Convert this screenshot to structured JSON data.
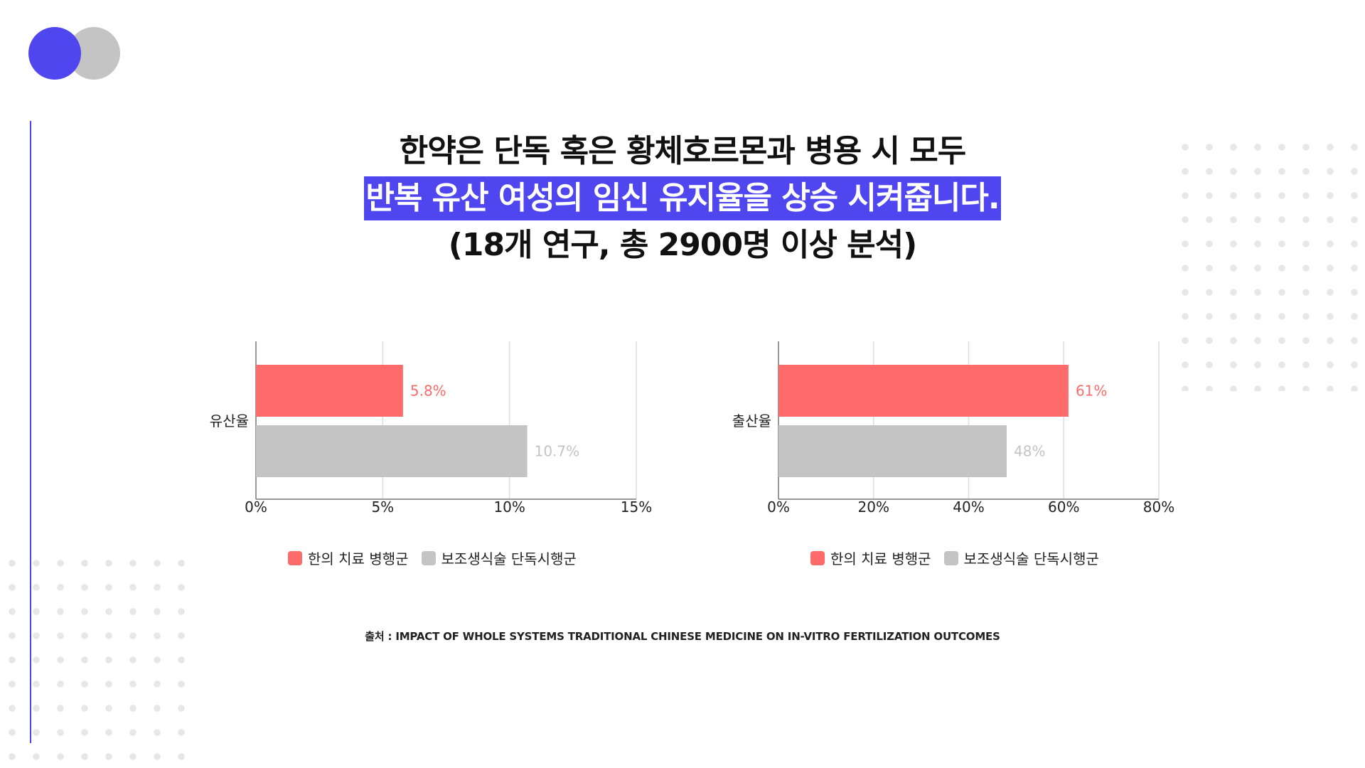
{
  "title": {
    "line1": "한약은 단독 혹은 황체호르몬과 병용 시 모두",
    "line2": "반복 유산 여성의 임신 유지율을 상승 시켜줍니다.",
    "line3": "(18개 연구, 총 2900명 이상 분석)"
  },
  "colors": {
    "accent": "#4f46f0",
    "red": "#ff6b6b",
    "grey": "#c4c4c4"
  },
  "legend": [
    "한의 치료 병행군",
    "보조생식술 단독시행군"
  ],
  "source": "출처 : IMPACT OF WHOLE SYSTEMS TRADITIONAL CHINESE MEDICINE ON IN-VITRO FERTILIZATION OUTCOMES",
  "chart_data": [
    {
      "type": "bar",
      "orientation": "horizontal",
      "categories": [
        "유산율"
      ],
      "series": [
        {
          "name": "한의 치료 병행군",
          "values": [
            5.8
          ],
          "labels": [
            "5.8%"
          ],
          "color": "#ff6b6b"
        },
        {
          "name": "보조생식술 단독시행군",
          "values": [
            10.7
          ],
          "labels": [
            "10.7%"
          ],
          "color": "#c4c4c4"
        }
      ],
      "xlim": [
        0,
        15
      ],
      "xticks": [
        0,
        5,
        10,
        15
      ],
      "xtick_labels": [
        "0%",
        "5%",
        "10%",
        "15%"
      ],
      "grid": true,
      "legend_position": "bottom"
    },
    {
      "type": "bar",
      "orientation": "horizontal",
      "categories": [
        "출산율"
      ],
      "series": [
        {
          "name": "한의 치료 병행군",
          "values": [
            61
          ],
          "labels": [
            "61%"
          ],
          "color": "#ff6b6b"
        },
        {
          "name": "보조생식술 단독시행군",
          "values": [
            48
          ],
          "labels": [
            "48%"
          ],
          "color": "#c4c4c4"
        }
      ],
      "xlim": [
        0,
        80
      ],
      "xticks": [
        0,
        20,
        40,
        60,
        80
      ],
      "xtick_labels": [
        "0%",
        "20%",
        "40%",
        "60%",
        "80%"
      ],
      "grid": true,
      "legend_position": "bottom"
    }
  ]
}
